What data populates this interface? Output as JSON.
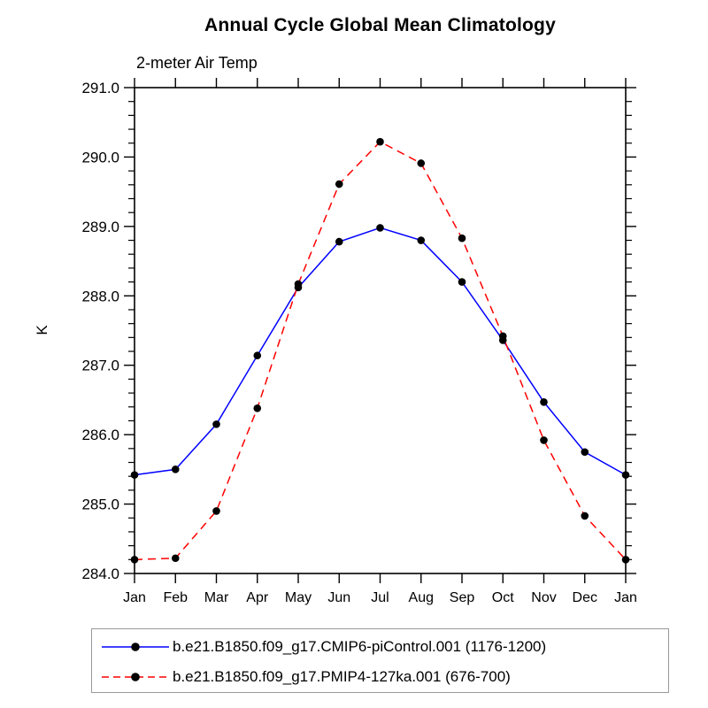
{
  "page": {
    "background": "#ffffff",
    "axis_color": "#000000"
  },
  "chart_data": {
    "type": "line",
    "title": "Annual Cycle Global Mean Climatology",
    "subtitle": "2-meter Air Temp",
    "ylabel": "K",
    "xlabel": "",
    "x_tick_labels": [
      "Jan",
      "Feb",
      "Mar",
      "Apr",
      "May",
      "Jun",
      "Jul",
      "Aug",
      "Sep",
      "Oct",
      "Nov",
      "Dec",
      "Jan"
    ],
    "ylim": [
      284.0,
      291.0
    ],
    "y_major_step": 1.0,
    "y_minor_step": 0.2,
    "y_tick_labels": [
      "284.0",
      "285.0",
      "286.0",
      "287.0",
      "288.0",
      "289.0",
      "290.0",
      "291.0"
    ],
    "grid": false,
    "legend_position": "bottom",
    "series": [
      {
        "name": "b.e21.B1850.f09_g17.CMIP6-piControl.001 (1176-1200)",
        "color": "#0000ff",
        "line_style": "solid",
        "marker": "filled-circle",
        "marker_color": "#000000",
        "values": [
          285.42,
          285.5,
          286.15,
          287.14,
          288.12,
          288.78,
          288.98,
          288.8,
          288.2,
          287.36,
          286.47,
          285.75,
          285.42
        ]
      },
      {
        "name": "b.e21.B1850.f09_g17.PMIP4-127ka.001 (676-700)",
        "color": "#ff0000",
        "line_style": "dashed",
        "marker": "filled-circle",
        "marker_color": "#000000",
        "values": [
          284.2,
          284.22,
          284.9,
          286.38,
          288.17,
          289.61,
          290.22,
          289.91,
          288.83,
          287.42,
          285.92,
          284.83,
          284.2
        ]
      }
    ]
  }
}
